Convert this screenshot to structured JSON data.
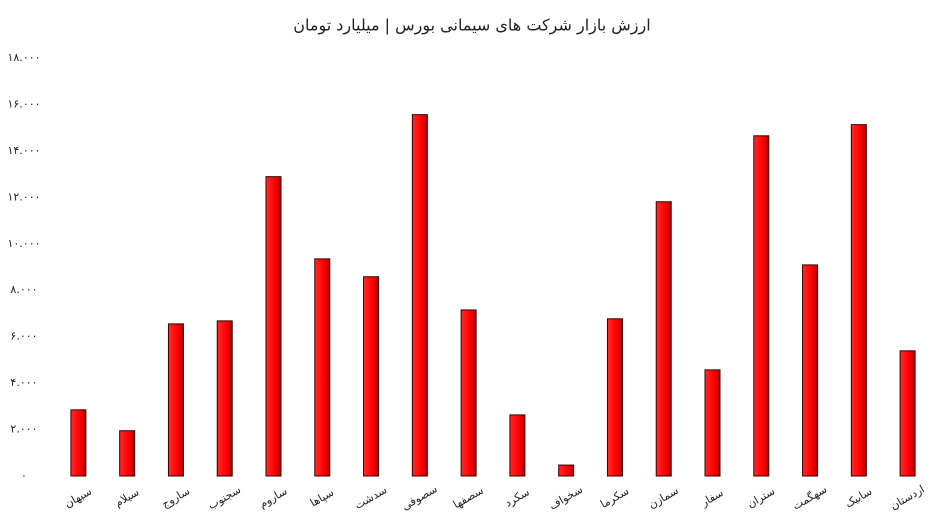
{
  "chart_data": {
    "type": "bar",
    "title": "ارزش بازار شرکت های سیمانی بورس | میلیارد تومان",
    "categories": [
      "سبهان",
      "سیلام",
      "ساروج",
      "سجنوب",
      "ساروم",
      "سپاها",
      "سدشت",
      "سصوفی",
      "سصفها",
      "سکرد",
      "سخواف",
      "سکرما",
      "سمازن",
      "سفار",
      "ستران",
      "سهگمت",
      "سابیک",
      "اردستان"
    ],
    "values": [
      2850,
      1950,
      6550,
      6680,
      12890,
      9350,
      8580,
      15560,
      7150,
      2630,
      470,
      6770,
      11810,
      4570,
      14650,
      9090,
      15130,
      5390
    ],
    "color": "#ff0000",
    "ylim": [
      0,
      18000
    ],
    "yticks": [
      {
        "value": 0,
        "label": "۰"
      },
      {
        "value": 2000,
        "label": "۲.۰۰۰"
      },
      {
        "value": 4000,
        "label": "۴.۰۰۰"
      },
      {
        "value": 6000,
        "label": "۶.۰۰۰"
      },
      {
        "value": 8000,
        "label": "۸.۰۰۰"
      },
      {
        "value": 10000,
        "label": "۱۰.۰۰۰"
      },
      {
        "value": 12000,
        "label": "۱۲.۰۰۰"
      },
      {
        "value": 14000,
        "label": "۱۴.۰۰۰"
      },
      {
        "value": 16000,
        "label": "۱۶.۰۰۰"
      },
      {
        "value": 18000,
        "label": "۱۸.۰۰۰"
      }
    ],
    "grid": false
  }
}
